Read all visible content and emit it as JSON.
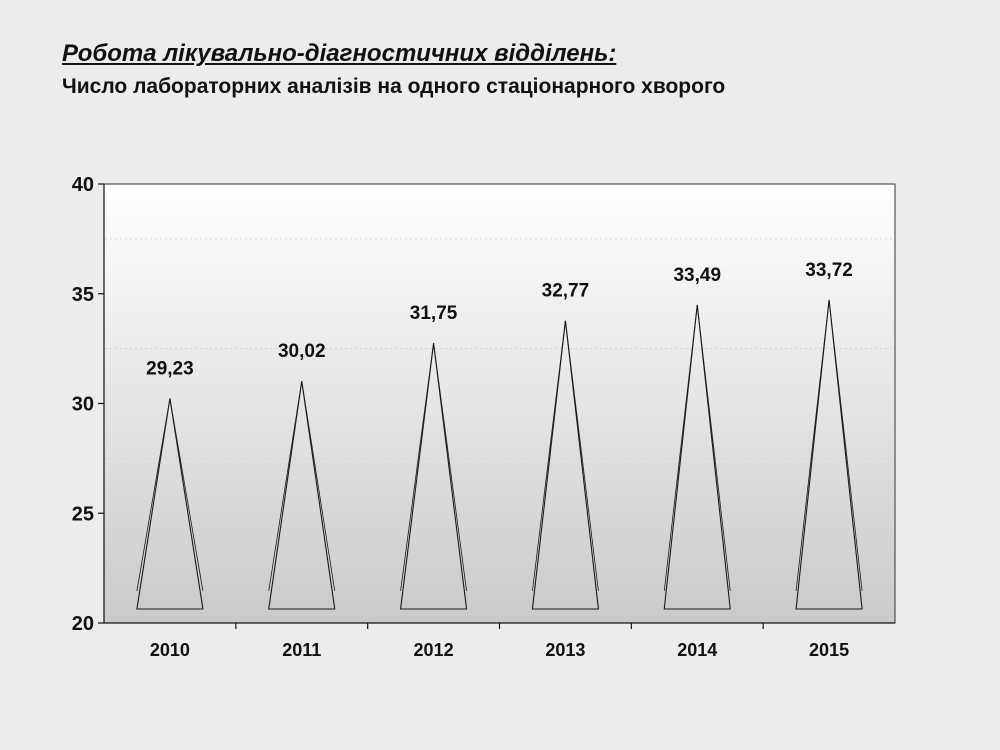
{
  "header": {
    "title": "Робота лікувально-діагностичних відділень:",
    "subtitle": "Число лабораторних аналізів  на одного стаціонарного хворого"
  },
  "chart_data": {
    "type": "bar",
    "mark_shape": "triangle",
    "categories": [
      "2010",
      "2011",
      "2012",
      "2013",
      "2014",
      "2015"
    ],
    "values": [
      29.23,
      30.02,
      31.75,
      32.77,
      33.49,
      33.72
    ],
    "value_labels": [
      "29,23",
      "30,02",
      "31,75",
      "32,77",
      "33,49",
      "33,72"
    ],
    "ylim": [
      20,
      40
    ],
    "yticks": [
      "20",
      "25",
      "30",
      "35",
      "40"
    ],
    "grid": false,
    "legend": "none"
  }
}
